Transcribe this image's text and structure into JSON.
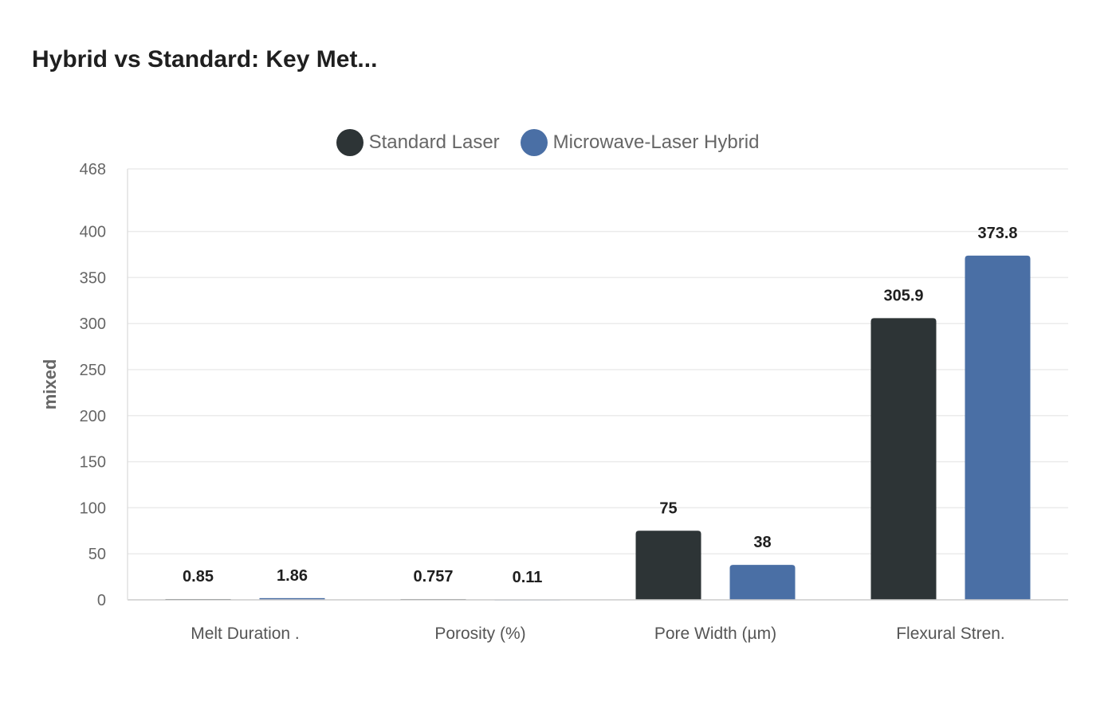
{
  "chart_data": {
    "type": "bar",
    "title": "Hybrid vs Standard: Key Met...",
    "xlabel": "",
    "ylabel": "mixed",
    "ylim": [
      0,
      468
    ],
    "yticks": [
      0,
      50,
      100,
      150,
      200,
      250,
      300,
      350,
      400,
      468
    ],
    "grid": true,
    "legend_position": "top-center",
    "categories": [
      "Melt Duration .",
      "Porosity (%)",
      "Pore Width (µm)",
      "Flexural Stren."
    ],
    "series": [
      {
        "name": "Standard Laser",
        "color": "#2d3436",
        "values": [
          0.85,
          0.757,
          75,
          305.9
        ],
        "labels": [
          "0.85",
          "0.757",
          "75",
          "305.9"
        ]
      },
      {
        "name": "Microwave-Laser Hybrid",
        "color": "#4a6fa5",
        "values": [
          1.86,
          0.11,
          38,
          373.8
        ],
        "labels": [
          "1.86",
          "0.11",
          "38",
          "373.8"
        ]
      }
    ]
  }
}
